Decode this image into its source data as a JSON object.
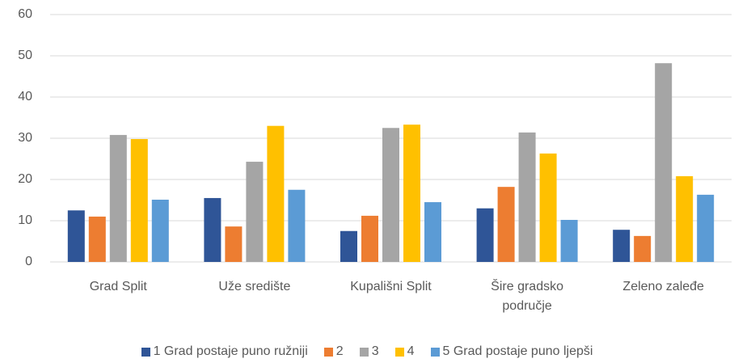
{
  "chart_data": {
    "type": "bar",
    "categories": [
      "Grad Split",
      "Uže središte",
      "Kupališni Split",
      "Šire gradsko područje",
      "Zeleno zaleđe"
    ],
    "series": [
      {
        "name": "1 Grad postaje puno ružniji",
        "color": "#2f5597",
        "values": [
          12.5,
          15.5,
          7.5,
          13,
          7.8
        ]
      },
      {
        "name": "2",
        "color": "#ed7d31",
        "values": [
          11,
          8.6,
          11.2,
          18.2,
          6.3
        ]
      },
      {
        "name": "3",
        "color": "#a5a5a5",
        "values": [
          30.8,
          24.3,
          32.5,
          31.4,
          48.2
        ]
      },
      {
        "name": "4",
        "color": "#ffc000",
        "values": [
          29.8,
          33,
          33.3,
          26.3,
          20.8
        ]
      },
      {
        "name": "5 Grad postaje puno ljepši",
        "color": "#5b9bd5",
        "values": [
          15.1,
          17.5,
          14.5,
          10.2,
          16.3
        ]
      }
    ],
    "ylim": [
      0,
      60
    ],
    "yticks": [
      0,
      10,
      20,
      30,
      40,
      50,
      60
    ],
    "grid": true,
    "legend": "bottom"
  }
}
